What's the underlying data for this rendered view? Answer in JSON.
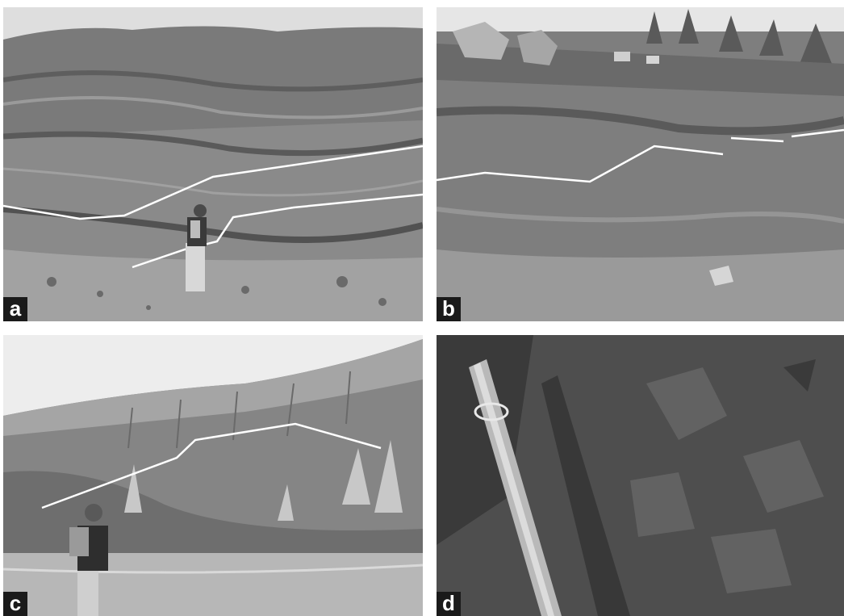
{
  "panels": [
    {
      "id": "a",
      "label": "a"
    },
    {
      "id": "b",
      "label": "b"
    },
    {
      "id": "c",
      "label": "c"
    },
    {
      "id": "d",
      "label": "d"
    }
  ],
  "colors": {
    "label_background": "#1a1a1a",
    "label_text": "#ffffff",
    "trace_line": "#ffffff"
  }
}
